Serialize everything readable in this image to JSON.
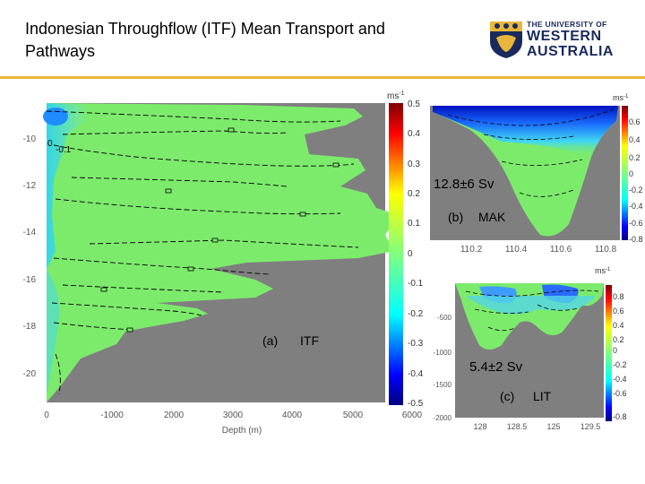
{
  "slide": {
    "title": "Indonesian Throughflow (ITF) Mean Transport and Pathways",
    "accent_color": "#e8b63a",
    "logo": {
      "line1": "THE UNIVERSITY OF",
      "line2": "WESTERN",
      "line3": "AUSTRALIA",
      "color": "#1a2a5c",
      "icon": "uwa-crest-icon"
    }
  },
  "panel_a": {
    "label": "(a)",
    "name": "ITF",
    "y_ticks": [
      "-10",
      "-12",
      "-14",
      "-16",
      "-18",
      "-20"
    ],
    "x_ticks": [
      "0",
      "-1000",
      "2000",
      "3000",
      "4000",
      "5000",
      "6000"
    ],
    "xlabel": "Depth (m)",
    "contour_labels": [
      "0",
      "-0.1"
    ],
    "colorbar_unit": "ms",
    "colorbar_unit_exp": "-1",
    "colorbar_ticks": [
      "0.5",
      "0.4",
      "0.3",
      "0.2",
      "0.1",
      "0",
      "-0.1",
      "-0.2",
      "-0.3",
      "-0.4",
      "-0.5"
    ]
  },
  "panel_b": {
    "label": "(b)",
    "name": "MAK",
    "transport": "12.8±6 Sv",
    "x_ticks": [
      "110.2",
      "110.4",
      "110.6",
      "110.8"
    ],
    "colorbar_unit": "ms",
    "colorbar_unit_exp": "-1",
    "colorbar_ticks": [
      "0.6",
      "0.4",
      "0.2",
      "0",
      "-0.2",
      "-0.4",
      "-0.6",
      "-0.8"
    ]
  },
  "panel_c": {
    "label": "(c)",
    "name": "LIT",
    "transport": "5.4±2 Sv",
    "y_ticks": [
      "-500",
      "-1000",
      "-1500",
      "-2000"
    ],
    "x_ticks": [
      "128",
      "128.5",
      "125",
      "129.5"
    ],
    "colorbar_unit": "ms",
    "colorbar_unit_exp": "-1",
    "colorbar_ticks": [
      "0.8",
      "0.6",
      "0.4",
      "0.2",
      "0",
      "-0.2",
      "-0.4",
      "-0.6",
      "-0.8"
    ]
  }
}
